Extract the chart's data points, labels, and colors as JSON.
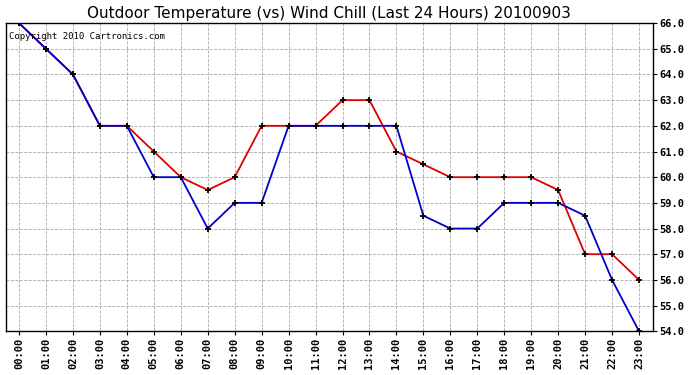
{
  "title": "Outdoor Temperature (vs) Wind Chill (Last 24 Hours) 20100903",
  "copyright_text": "Copyright 2010 Cartronics.com",
  "hours": [
    "00:00",
    "01:00",
    "02:00",
    "03:00",
    "04:00",
    "05:00",
    "06:00",
    "07:00",
    "08:00",
    "09:00",
    "10:00",
    "11:00",
    "12:00",
    "13:00",
    "14:00",
    "15:00",
    "16:00",
    "17:00",
    "18:00",
    "19:00",
    "20:00",
    "21:00",
    "22:00",
    "23:00"
  ],
  "temp_red": [
    66.0,
    65.0,
    64.0,
    62.0,
    62.0,
    61.0,
    60.0,
    59.5,
    60.0,
    62.0,
    62.0,
    62.0,
    63.0,
    63.0,
    61.0,
    60.5,
    60.0,
    60.0,
    60.0,
    60.0,
    59.5,
    57.0,
    57.0,
    56.0
  ],
  "wind_chill_blue": [
    66.0,
    65.0,
    64.0,
    62.0,
    62.0,
    60.0,
    60.0,
    58.0,
    59.0,
    59.0,
    62.0,
    62.0,
    62.0,
    62.0,
    62.0,
    58.5,
    58.0,
    58.0,
    59.0,
    59.0,
    59.0,
    58.5,
    56.0,
    54.0
  ],
  "ylim_min": 54.0,
  "ylim_max": 66.0,
  "ytick_step": 1.0,
  "bg_color": "#ffffff",
  "plot_bg_color": "#ffffff",
  "grid_color": "#aaaaaa",
  "red_color": "#dd0000",
  "blue_color": "#0000cc",
  "title_fontsize": 11,
  "tick_fontsize": 7.5,
  "copyright_fontsize": 6.5
}
